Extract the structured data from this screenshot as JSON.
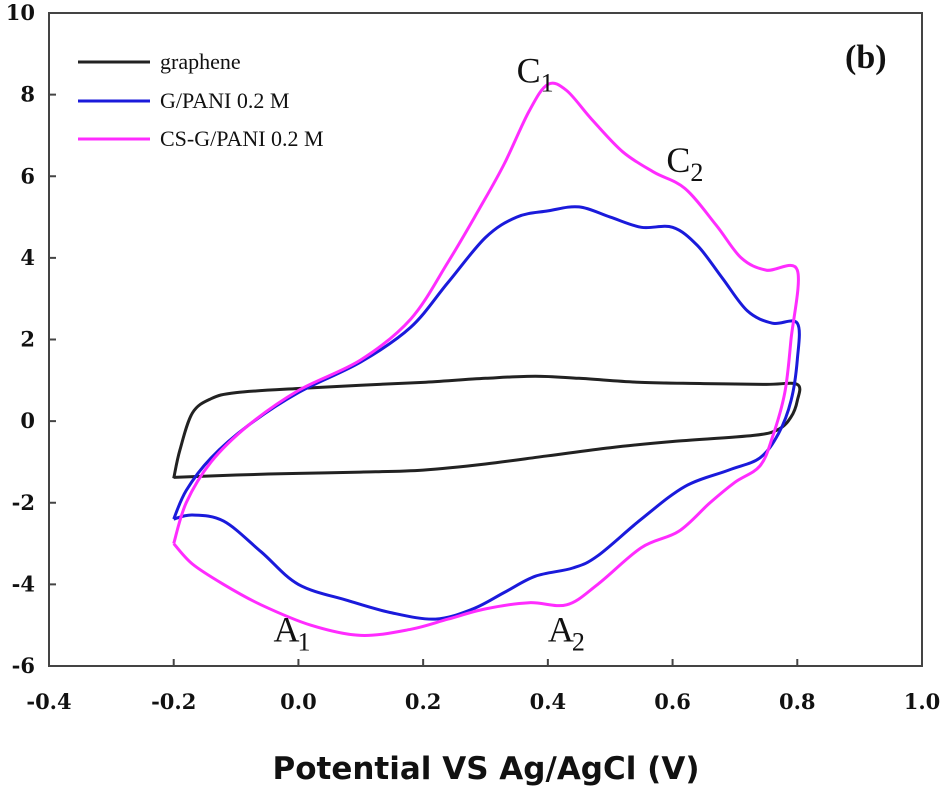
{
  "chart_data": {
    "type": "line",
    "xlabel": "Potential VS Ag/AgCl (V)",
    "ylabel": "",
    "xlim": [
      -0.4,
      1.0
    ],
    "ylim": [
      -6,
      10
    ],
    "x_ticks": [
      "-0.4",
      "-0.2",
      "0.0",
      "0.2",
      "0.4",
      "0.6",
      "0.8",
      "1.0"
    ],
    "y_ticks": [
      "-6",
      "-4",
      "-2",
      "0",
      "2",
      "4",
      "6",
      "8",
      "10"
    ],
    "grid": false,
    "legend_position": "top-left",
    "panel_label": "(b)",
    "annotations": [
      {
        "main": "C",
        "sub": "1",
        "x": 0.35,
        "y": 8.3
      },
      {
        "main": "C",
        "sub": "2",
        "x": 0.59,
        "y": 6.1
      },
      {
        "main": "A",
        "sub": "1",
        "x": -0.04,
        "y": -5.4
      },
      {
        "main": "A",
        "sub": "2",
        "x": 0.4,
        "y": -5.4
      }
    ],
    "series": [
      {
        "name": "graphene",
        "color": "#222222",
        "points": [
          [
            -0.2,
            -1.4
          ],
          [
            -0.19,
            -0.7
          ],
          [
            -0.17,
            0.2
          ],
          [
            -0.14,
            0.55
          ],
          [
            -0.1,
            0.7
          ],
          [
            0.0,
            0.8
          ],
          [
            0.1,
            0.88
          ],
          [
            0.2,
            0.95
          ],
          [
            0.3,
            1.05
          ],
          [
            0.38,
            1.1
          ],
          [
            0.45,
            1.05
          ],
          [
            0.55,
            0.95
          ],
          [
            0.65,
            0.92
          ],
          [
            0.75,
            0.9
          ],
          [
            0.8,
            0.9
          ],
          [
            0.8,
            0.5
          ],
          [
            0.79,
            0.1
          ],
          [
            0.77,
            -0.2
          ],
          [
            0.73,
            -0.35
          ],
          [
            0.6,
            -0.5
          ],
          [
            0.5,
            -0.65
          ],
          [
            0.4,
            -0.85
          ],
          [
            0.3,
            -1.05
          ],
          [
            0.2,
            -1.2
          ],
          [
            0.1,
            -1.25
          ],
          [
            0.0,
            -1.28
          ],
          [
            -0.1,
            -1.32
          ],
          [
            -0.2,
            -1.38
          ]
        ]
      },
      {
        "name": "G/PANI 0.2 M",
        "color": "#1a1adb",
        "points": [
          [
            -0.2,
            -2.4
          ],
          [
            -0.18,
            -1.7
          ],
          [
            -0.14,
            -0.9
          ],
          [
            -0.08,
            -0.1
          ],
          [
            0.0,
            0.7
          ],
          [
            0.1,
            1.45
          ],
          [
            0.18,
            2.3
          ],
          [
            0.24,
            3.4
          ],
          [
            0.3,
            4.5
          ],
          [
            0.35,
            5.0
          ],
          [
            0.4,
            5.15
          ],
          [
            0.45,
            5.25
          ],
          [
            0.5,
            5.0
          ],
          [
            0.55,
            4.75
          ],
          [
            0.6,
            4.75
          ],
          [
            0.64,
            4.3
          ],
          [
            0.68,
            3.5
          ],
          [
            0.72,
            2.7
          ],
          [
            0.76,
            2.4
          ],
          [
            0.8,
            2.4
          ],
          [
            0.8,
            1.5
          ],
          [
            0.79,
            0.5
          ],
          [
            0.77,
            -0.3
          ],
          [
            0.74,
            -0.9
          ],
          [
            0.69,
            -1.2
          ],
          [
            0.62,
            -1.6
          ],
          [
            0.55,
            -2.4
          ],
          [
            0.48,
            -3.3
          ],
          [
            0.44,
            -3.6
          ],
          [
            0.38,
            -3.8
          ],
          [
            0.33,
            -4.2
          ],
          [
            0.28,
            -4.6
          ],
          [
            0.22,
            -4.85
          ],
          [
            0.15,
            -4.7
          ],
          [
            0.08,
            -4.4
          ],
          [
            0.0,
            -4.0
          ],
          [
            -0.06,
            -3.2
          ],
          [
            -0.12,
            -2.45
          ],
          [
            -0.17,
            -2.3
          ],
          [
            -0.2,
            -2.4
          ]
        ]
      },
      {
        "name": "CS-G/PANI 0.2 M",
        "color": "#ff2cff",
        "points": [
          [
            -0.2,
            -3.0
          ],
          [
            -0.18,
            -2.0
          ],
          [
            -0.14,
            -1.0
          ],
          [
            -0.08,
            -0.1
          ],
          [
            0.0,
            0.75
          ],
          [
            0.1,
            1.5
          ],
          [
            0.18,
            2.5
          ],
          [
            0.24,
            3.9
          ],
          [
            0.29,
            5.2
          ],
          [
            0.33,
            6.3
          ],
          [
            0.37,
            7.6
          ],
          [
            0.4,
            8.25
          ],
          [
            0.43,
            8.1
          ],
          [
            0.47,
            7.4
          ],
          [
            0.52,
            6.6
          ],
          [
            0.57,
            6.1
          ],
          [
            0.62,
            5.7
          ],
          [
            0.67,
            4.8
          ],
          [
            0.71,
            4.0
          ],
          [
            0.75,
            3.7
          ],
          [
            0.8,
            3.7
          ],
          [
            0.79,
            2.0
          ],
          [
            0.78,
            0.7
          ],
          [
            0.76,
            -0.4
          ],
          [
            0.74,
            -1.1
          ],
          [
            0.7,
            -1.5
          ],
          [
            0.66,
            -2.0
          ],
          [
            0.61,
            -2.7
          ],
          [
            0.55,
            -3.1
          ],
          [
            0.48,
            -4.0
          ],
          [
            0.43,
            -4.5
          ],
          [
            0.37,
            -4.45
          ],
          [
            0.3,
            -4.6
          ],
          [
            0.24,
            -4.85
          ],
          [
            0.18,
            -5.1
          ],
          [
            0.1,
            -5.25
          ],
          [
            0.02,
            -5.0
          ],
          [
            -0.06,
            -4.5
          ],
          [
            -0.12,
            -4.0
          ],
          [
            -0.17,
            -3.5
          ],
          [
            -0.2,
            -3.0
          ]
        ]
      }
    ]
  }
}
